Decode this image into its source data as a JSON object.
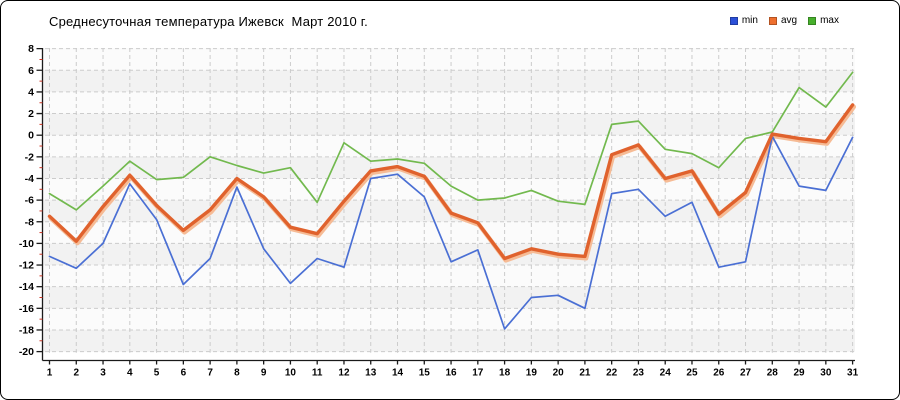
{
  "window": {
    "title": "Среднесуточная температура Ижевск  Март 2010 г."
  },
  "legend": {
    "position": "top-right",
    "items": [
      {
        "label": "min",
        "color": "#2b50d8"
      },
      {
        "label": "avg",
        "color": "#ee6f2e"
      },
      {
        "label": "max",
        "color": "#47b02c"
      }
    ]
  },
  "colors": {
    "grid": "#cccccc",
    "band": "#f2f2f2",
    "plot_bg": "#fbfbfb",
    "axis": "#1a1a1a",
    "minor_tick": "#cc3322",
    "avg_halo": "#f6bb95",
    "min_line": "#4a6fd4",
    "avg_line": "#e0622d",
    "max_line": "#72b94e"
  },
  "chart_data": {
    "type": "line",
    "title": "Среднесуточная температура Ижевск  Март 2010 г.",
    "xlabel": "",
    "ylabel": "",
    "x": [
      1,
      2,
      3,
      4,
      5,
      6,
      7,
      8,
      9,
      10,
      11,
      12,
      13,
      14,
      15,
      16,
      17,
      18,
      19,
      20,
      21,
      22,
      23,
      24,
      25,
      26,
      27,
      28,
      29,
      30,
      31
    ],
    "ylim": [
      -20,
      8
    ],
    "ytick_step": 2,
    "grid": true,
    "legend_position": "top-right",
    "series": [
      {
        "name": "min",
        "color": "#4a6fd4",
        "values": [
          -11.2,
          -12.3,
          -10.0,
          -4.5,
          -7.8,
          -13.8,
          -11.4,
          -4.8,
          -10.5,
          -13.7,
          -11.4,
          -12.2,
          -4.0,
          -3.6,
          -5.7,
          -11.7,
          -10.6,
          -17.9,
          -15.0,
          -14.8,
          -16.0,
          -5.4,
          -5.0,
          -7.5,
          -6.2,
          -12.2,
          -11.7,
          -0.1,
          -4.7,
          -5.1,
          -0.2
        ]
      },
      {
        "name": "avg",
        "color": "#e0622d",
        "values": [
          -7.5,
          -9.8,
          -6.6,
          -3.7,
          -6.5,
          -8.8,
          -6.9,
          -4.0,
          -5.7,
          -8.5,
          -9.1,
          -6.1,
          -3.3,
          -2.9,
          -3.8,
          -7.2,
          -8.1,
          -11.4,
          -10.5,
          -11.0,
          -11.2,
          -1.8,
          -0.9,
          -4.0,
          -3.3,
          -7.3,
          -5.3,
          0.1,
          -0.3,
          -0.6,
          2.8
        ]
      },
      {
        "name": "max",
        "color": "#72b94e",
        "values": [
          -5.4,
          -6.9,
          -4.7,
          -2.4,
          -4.1,
          -3.9,
          -2.0,
          -2.8,
          -3.5,
          -3.0,
          -6.2,
          -0.7,
          -2.4,
          -2.2,
          -2.6,
          -4.7,
          -6.0,
          -5.8,
          -5.1,
          -6.1,
          -6.4,
          1.0,
          1.3,
          -1.3,
          -1.7,
          -3.0,
          -0.3,
          0.3,
          4.4,
          2.6,
          5.8
        ]
      }
    ]
  }
}
